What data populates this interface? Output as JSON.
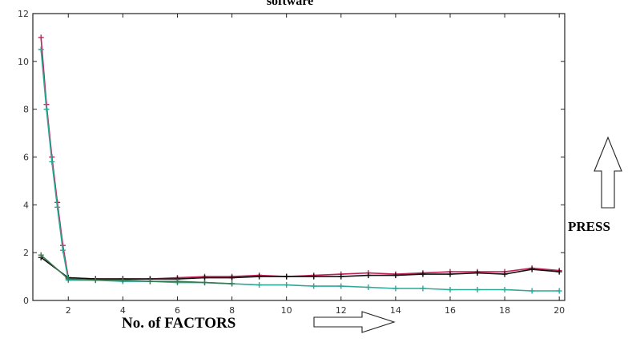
{
  "chart_data": {
    "type": "line",
    "title": "software",
    "xlabel": "No. of FACTORS",
    "ylabel": "PRESS",
    "xlim": [
      0.7,
      20.2
    ],
    "ylim": [
      0,
      12
    ],
    "xticks": [
      2,
      4,
      6,
      8,
      10,
      12,
      14,
      16,
      18,
      20
    ],
    "yticks": [
      0,
      2,
      4,
      6,
      8,
      10,
      12
    ],
    "grid": false,
    "legend": "none",
    "series": [
      {
        "color": "#c0205a",
        "marker": "plus",
        "x": [
          1,
          1.2,
          1.4,
          1.6,
          1.8,
          2,
          3,
          4,
          5,
          6,
          7,
          8,
          9,
          10,
          11,
          12,
          13,
          14,
          15,
          16,
          17,
          18,
          19,
          20
        ],
        "y": [
          11.0,
          8.2,
          6.0,
          4.1,
          2.3,
          0.95,
          0.9,
          0.9,
          0.9,
          0.95,
          1.0,
          1.0,
          1.05,
          1.0,
          1.05,
          1.1,
          1.15,
          1.1,
          1.15,
          1.2,
          1.2,
          1.2,
          1.35,
          1.25
        ]
      },
      {
        "color": "#101010",
        "marker": "plus",
        "x": [
          1,
          2,
          3,
          4,
          5,
          6,
          7,
          8,
          9,
          10,
          11,
          12,
          13,
          14,
          15,
          16,
          17,
          18,
          19,
          20
        ],
        "y": [
          1.8,
          0.95,
          0.9,
          0.9,
          0.9,
          0.9,
          0.95,
          0.95,
          1.0,
          1.0,
          1.0,
          1.0,
          1.05,
          1.05,
          1.1,
          1.1,
          1.15,
          1.1,
          1.3,
          1.2
        ]
      },
      {
        "color": "#2aa898",
        "marker": "plus",
        "x": [
          1,
          1.2,
          1.4,
          1.6,
          1.8,
          2,
          3,
          4,
          5,
          6,
          7,
          8,
          9,
          10,
          11,
          12,
          13,
          14,
          15,
          16,
          17,
          18,
          19,
          20
        ],
        "y": [
          10.5,
          8.0,
          5.8,
          3.9,
          2.1,
          0.85,
          0.85,
          0.8,
          0.8,
          0.75,
          0.75,
          0.7,
          0.65,
          0.65,
          0.6,
          0.6,
          0.55,
          0.5,
          0.5,
          0.45,
          0.45,
          0.45,
          0.4,
          0.4
        ]
      },
      {
        "color": "#3a7a50",
        "marker": "plus",
        "x": [
          1,
          2,
          3,
          4,
          5,
          6,
          7,
          8
        ],
        "y": [
          1.9,
          0.9,
          0.85,
          0.85,
          0.8,
          0.8,
          0.75,
          0.7
        ]
      }
    ]
  }
}
